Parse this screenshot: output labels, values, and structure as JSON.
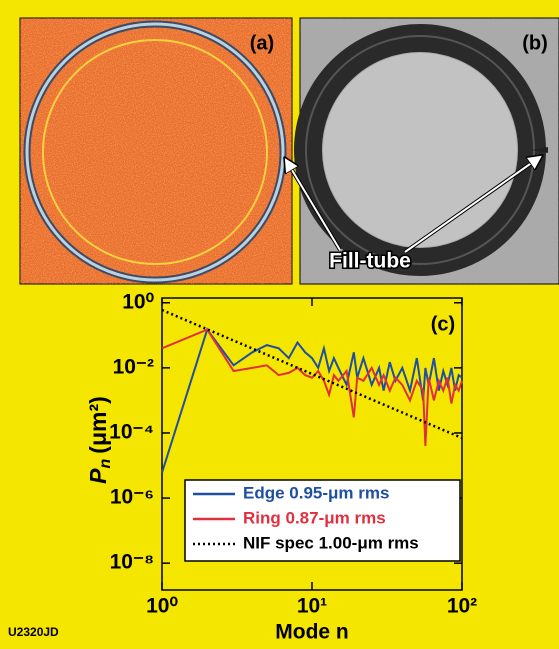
{
  "panels": {
    "a": "(a)",
    "b": "(b)"
  },
  "annotation": "Fill-tube",
  "figure_id": "U2320JD",
  "chart_data": {
    "type": "line",
    "panel_label": "(c)",
    "ylabel_symbol": "P",
    "ylabel_subscript": "n",
    "ylabel_unit": "(μm²)",
    "xlabel": "Mode n",
    "xlog": true,
    "ylog": true,
    "xlim": [
      1,
      100
    ],
    "ylim": [
      1.5e-09,
      1.4
    ],
    "xticks": [
      {
        "value": 1,
        "label": "10⁰"
      },
      {
        "value": 10,
        "label": "10¹"
      },
      {
        "value": 100,
        "label": "10²"
      }
    ],
    "yticks": [
      {
        "value": 1,
        "label": "10⁰"
      },
      {
        "value": 0.01,
        "label": "10⁻²"
      },
      {
        "value": 0.0001,
        "label": "10⁻⁴"
      },
      {
        "value": 1e-06,
        "label": "10⁻⁶"
      },
      {
        "value": 1e-08,
        "label": "10⁻⁸"
      }
    ],
    "x": [
      1,
      2,
      3,
      4,
      5,
      6,
      7,
      8,
      9,
      10,
      11,
      12,
      13,
      14,
      15,
      17,
      19,
      20,
      22,
      25,
      28,
      30,
      33,
      36,
      40,
      45,
      50,
      55,
      57,
      60,
      65,
      70,
      75,
      80,
      85,
      90,
      95,
      100
    ],
    "series": [
      {
        "name": "Edge 0.95-μm rms",
        "color": "#1f4fa0",
        "linestyle": "solid",
        "values": [
          6e-06,
          0.15,
          0.012,
          0.03,
          0.05,
          0.04,
          0.02,
          0.06,
          0.03,
          0.02,
          0.01,
          0.04,
          0.008,
          0.02,
          0.01,
          0.003,
          0.03,
          0.005,
          0.02,
          0.003,
          0.01,
          0.002,
          0.015,
          0.004,
          0.01,
          0.002,
          0.02,
          0.001,
          0.01,
          0.003,
          0.02,
          0.002,
          0.008,
          0.003,
          0.01,
          0.002,
          0.006,
          0.005
        ]
      },
      {
        "name": "Ring 0.87-μm rms",
        "color": "#e03040",
        "linestyle": "solid",
        "values": [
          0.04,
          0.15,
          0.008,
          0.01,
          0.012,
          0.006,
          0.007,
          0.01,
          0.006,
          0.005,
          0.008,
          0.004,
          0.0015,
          0.006,
          0.004,
          0.008,
          0.0003,
          0.005,
          0.004,
          0.01,
          0.003,
          0.006,
          0.002,
          0.005,
          0.003,
          0.001,
          0.004,
          0.002,
          4e-05,
          0.005,
          0.001,
          0.004,
          0.002,
          0.005,
          0.0008,
          0.003,
          0.002,
          0.004
        ]
      },
      {
        "name": "NIF spec 1.00-μm rms",
        "color": "#000000",
        "linestyle": "dotted",
        "x": [
          1,
          100
        ],
        "values": [
          0.6,
          7e-05
        ]
      }
    ],
    "legend": "lower-right"
  }
}
